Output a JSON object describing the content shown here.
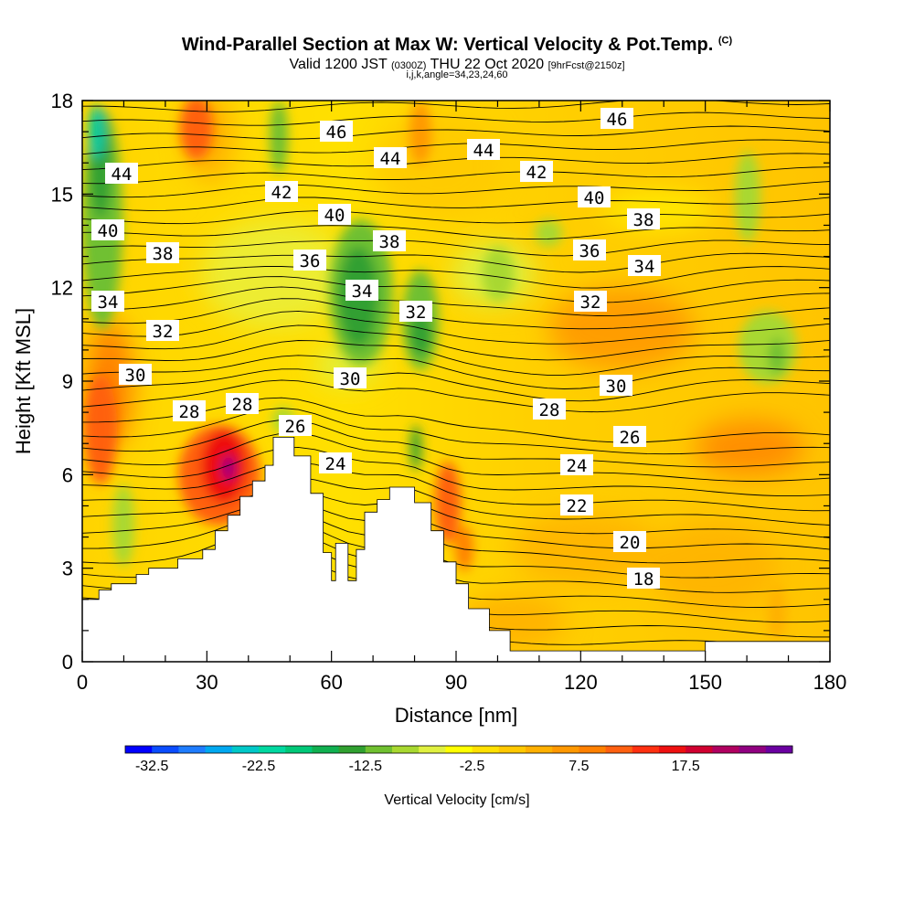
{
  "header": {
    "title": "Wind-Parallel Section at Max W: Vertical Velocity & Pot.Temp.",
    "copyright": "(C)",
    "valid_prefix": "Valid 1200 JST",
    "valid_utc": "(0300Z)",
    "valid_date": "THU 22 Oct 2020",
    "forecast": "[9hrFcst@2150z]",
    "subline": "i,j,k,angle=34,23,24,60"
  },
  "chart_data": {
    "type": "heatmap",
    "xlabel": "Distance [nm]",
    "ylabel": "Height [Kft MSL]",
    "xlim": [
      0,
      180
    ],
    "ylim": [
      0,
      18
    ],
    "x_ticks": [
      "0",
      "30",
      "60",
      "90",
      "120",
      "150",
      "180"
    ],
    "y_ticks": [
      "0",
      "3",
      "6",
      "9",
      "12",
      "15",
      "18"
    ],
    "colorbar": {
      "label": "Vertical Velocity [cm/s]",
      "tick_labels": [
        "-32.5",
        "-22.5",
        "-12.5",
        "-2.5",
        "7.5",
        "17.5"
      ],
      "colors": [
        "#0000ff",
        "#0a4cff",
        "#1e7cff",
        "#00a8f0",
        "#00c8c8",
        "#00d8a0",
        "#00c878",
        "#10b050",
        "#30a030",
        "#70c030",
        "#a8d830",
        "#e0f040",
        "#ffff00",
        "#ffe000",
        "#ffc800",
        "#ffb000",
        "#ff9800",
        "#ff8000",
        "#ff6010",
        "#ff3010",
        "#ee1010",
        "#d00030",
        "#b00060",
        "#900080",
        "#6a00a0"
      ]
    },
    "terrain": [
      [
        0,
        2
      ],
      [
        4,
        2
      ],
      [
        4,
        2.3
      ],
      [
        7,
        2.3
      ],
      [
        7,
        2.5
      ],
      [
        13,
        2.5
      ],
      [
        13,
        2.8
      ],
      [
        16,
        2.8
      ],
      [
        16,
        3
      ],
      [
        23,
        3
      ],
      [
        23,
        3.3
      ],
      [
        29,
        3.3
      ],
      [
        29,
        3.6
      ],
      [
        32,
        3.6
      ],
      [
        32,
        4.2
      ],
      [
        35,
        4.2
      ],
      [
        35,
        4.7
      ],
      [
        38,
        4.7
      ],
      [
        38,
        5.3
      ],
      [
        41,
        5.3
      ],
      [
        41,
        5.8
      ],
      [
        44,
        5.8
      ],
      [
        44,
        6.3
      ],
      [
        46,
        6.3
      ],
      [
        46,
        7.2
      ],
      [
        51,
        7.2
      ],
      [
        51,
        6.6
      ],
      [
        55,
        6.6
      ],
      [
        55,
        5.4
      ],
      [
        58,
        5.4
      ],
      [
        58,
        3.5
      ],
      [
        60,
        3.5
      ],
      [
        60,
        2.6
      ],
      [
        61,
        2.6
      ],
      [
        61,
        3.8
      ],
      [
        64,
        3.8
      ],
      [
        64,
        2.6
      ],
      [
        66,
        2.6
      ],
      [
        66,
        3.6
      ],
      [
        68,
        3.6
      ],
      [
        68,
        4.8
      ],
      [
        71,
        4.8
      ],
      [
        71,
        5.2
      ],
      [
        74,
        5.2
      ],
      [
        74,
        5.6
      ],
      [
        80,
        5.6
      ],
      [
        80,
        5.1
      ],
      [
        84,
        5.1
      ],
      [
        84,
        4.2
      ],
      [
        87,
        4.2
      ],
      [
        87,
        3.2
      ],
      [
        90,
        3.2
      ],
      [
        90,
        2.5
      ],
      [
        93,
        2.5
      ],
      [
        93,
        1.7
      ],
      [
        98,
        1.7
      ],
      [
        98,
        1.0
      ],
      [
        103,
        1.0
      ],
      [
        103,
        0.35
      ],
      [
        150,
        0.35
      ],
      [
        150,
        0.65
      ],
      [
        180,
        0.65
      ],
      [
        180,
        0
      ]
    ],
    "theta_contours": [
      "18",
      "20",
      "22",
      "24",
      "26",
      "28",
      "30",
      "32",
      "34",
      "36",
      "38",
      "40",
      "42",
      "44",
      "46"
    ]
  }
}
